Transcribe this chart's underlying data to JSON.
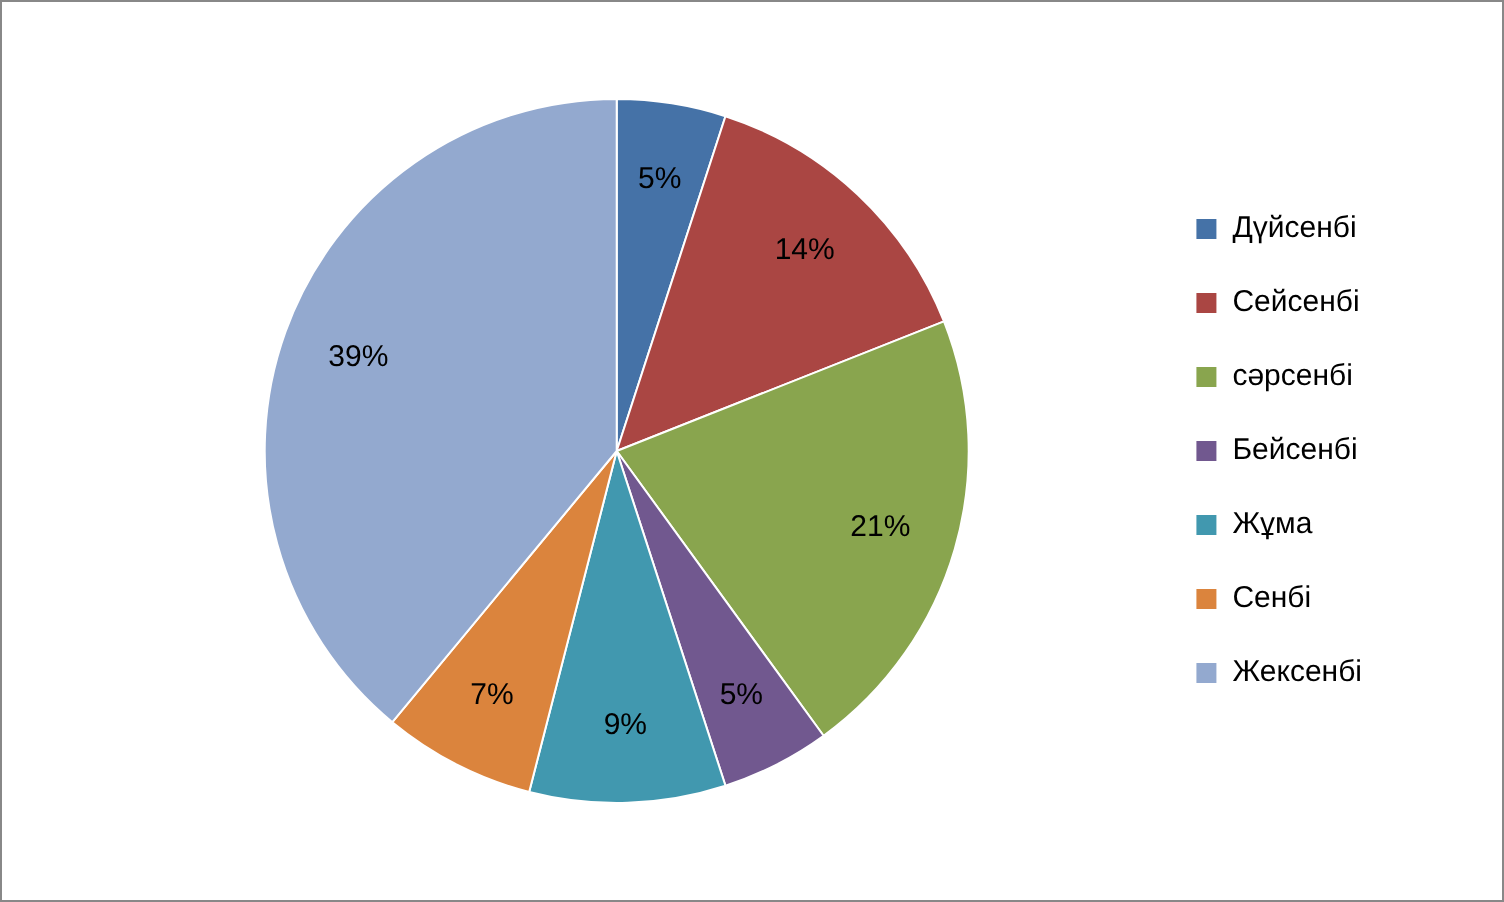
{
  "chart_data": {
    "type": "pie",
    "categories": [
      "Дүйсенбі",
      "Сейсенбі",
      "сәрсенбі",
      "Бейсенбі",
      "Жұма",
      "Сенбі",
      "Жексенбі"
    ],
    "values": [
      5,
      14,
      21,
      5,
      9,
      7,
      39
    ],
    "colors": [
      "#4572a7",
      "#aa4643",
      "#89a54e",
      "#71588f",
      "#4198af",
      "#db843d",
      "#93a9cf"
    ],
    "value_labels": [
      "5%",
      "14%",
      "21%",
      "5%",
      "9%",
      "7%",
      "39%"
    ],
    "legend": "right"
  }
}
